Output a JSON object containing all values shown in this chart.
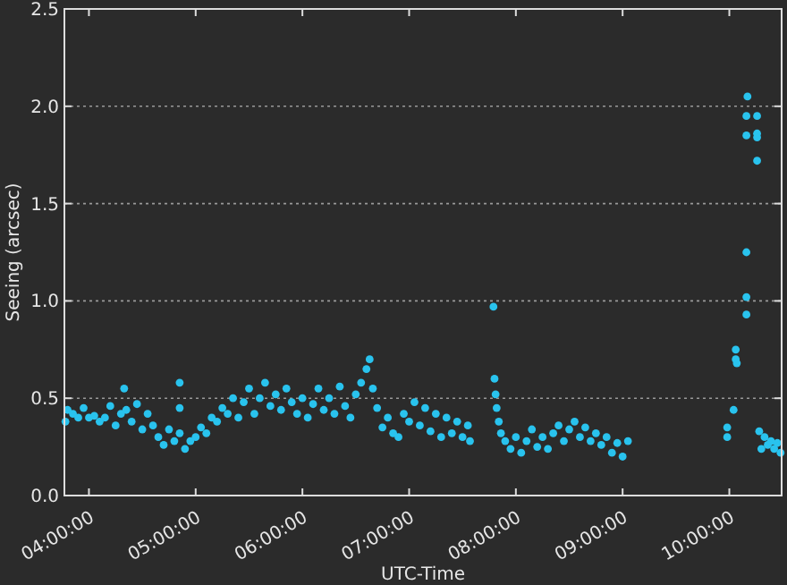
{
  "chart_data": {
    "type": "scatter",
    "xlabel": "UTC-Time",
    "ylabel": "Seeing (arcsec)",
    "marker": "circle",
    "grid": "y",
    "xlim": [
      3.77,
      10.49
    ],
    "ylim": [
      0,
      2.5
    ],
    "xticks": [
      {
        "value": 4,
        "label": "04:00:00"
      },
      {
        "value": 5,
        "label": "05:00:00"
      },
      {
        "value": 6,
        "label": "06:00:00"
      },
      {
        "value": 7,
        "label": "07:00:00"
      },
      {
        "value": 8,
        "label": "08:00:00"
      },
      {
        "value": 9,
        "label": "09:00:00"
      },
      {
        "value": 10,
        "label": "10:00:00"
      }
    ],
    "yticks": [
      {
        "value": 0,
        "label": "0.0"
      },
      {
        "value": 0.5,
        "label": "0.5"
      },
      {
        "value": 1,
        "label": "1.0"
      },
      {
        "value": 1.5,
        "label": "1.5"
      },
      {
        "value": 2,
        "label": "2.0"
      },
      {
        "value": 2.5,
        "label": "2.5"
      }
    ],
    "series": [
      {
        "color": "#29c3ee",
        "x": [
          3.78,
          3.8,
          3.85,
          3.9,
          3.95,
          4,
          4.05,
          4.1,
          4.15,
          4.2,
          4.25,
          4.3,
          4.33,
          4.35,
          4.4,
          4.45,
          4.5,
          4.55,
          4.6,
          4.65,
          4.7,
          4.75,
          4.8,
          4.85,
          4.85,
          4.85,
          4.9,
          4.95,
          5,
          5.05,
          5.1,
          5.15,
          5.2,
          5.25,
          5.3,
          5.35,
          5.4,
          5.45,
          5.5,
          5.55,
          5.6,
          5.65,
          5.7,
          5.75,
          5.8,
          5.85,
          5.9,
          5.95,
          6,
          6.05,
          6.1,
          6.15,
          6.2,
          6.25,
          6.3,
          6.35,
          6.4,
          6.45,
          6.5,
          6.55,
          6.6,
          6.63,
          6.66,
          6.7,
          6.75,
          6.8,
          6.85,
          6.9,
          6.95,
          7,
          7.05,
          7.1,
          7.15,
          7.2,
          7.25,
          7.3,
          7.35,
          7.4,
          7.45,
          7.5,
          7.55,
          7.57,
          7.79,
          7.8,
          7.81,
          7.82,
          7.84,
          7.86,
          7.9,
          7.95,
          8,
          8.05,
          8.1,
          8.15,
          8.2,
          8.25,
          8.3,
          8.35,
          8.4,
          8.45,
          8.5,
          8.55,
          8.6,
          8.65,
          8.7,
          8.75,
          8.8,
          8.85,
          8.9,
          8.95,
          9,
          9.05,
          9.98,
          9.98,
          10.04,
          10.06,
          10.06,
          10.07,
          10.16,
          10.16,
          10.16,
          10.16,
          10.16,
          10.17,
          10.26,
          10.26,
          10.26,
          10.26,
          10.28,
          10.3,
          10.33,
          10.36,
          10.39,
          10.42,
          10.45,
          10.48
        ],
        "values": [
          0.38,
          0.44,
          0.42,
          0.4,
          0.45,
          0.4,
          0.41,
          0.38,
          0.4,
          0.46,
          0.36,
          0.42,
          0.55,
          0.44,
          0.38,
          0.47,
          0.34,
          0.42,
          0.36,
          0.3,
          0.26,
          0.34,
          0.28,
          0.58,
          0.45,
          0.32,
          0.24,
          0.28,
          0.3,
          0.35,
          0.32,
          0.4,
          0.38,
          0.45,
          0.42,
          0.5,
          0.4,
          0.48,
          0.55,
          0.42,
          0.5,
          0.58,
          0.46,
          0.52,
          0.44,
          0.55,
          0.48,
          0.42,
          0.5,
          0.4,
          0.47,
          0.55,
          0.44,
          0.5,
          0.42,
          0.56,
          0.46,
          0.4,
          0.52,
          0.58,
          0.65,
          0.7,
          0.55,
          0.45,
          0.35,
          0.4,
          0.32,
          0.3,
          0.42,
          0.38,
          0.48,
          0.36,
          0.45,
          0.33,
          0.42,
          0.3,
          0.4,
          0.32,
          0.38,
          0.3,
          0.36,
          0.28,
          0.97,
          0.6,
          0.52,
          0.45,
          0.38,
          0.32,
          0.28,
          0.24,
          0.3,
          0.22,
          0.28,
          0.34,
          0.25,
          0.3,
          0.24,
          0.32,
          0.36,
          0.28,
          0.34,
          0.38,
          0.3,
          0.35,
          0.28,
          0.32,
          0.26,
          0.3,
          0.22,
          0.27,
          0.2,
          0.28,
          0.3,
          0.35,
          0.44,
          0.7,
          0.75,
          0.68,
          0.93,
          1.02,
          1.25,
          1.85,
          1.95,
          2.05,
          1.95,
          1.86,
          1.84,
          1.72,
          0.33,
          0.24,
          0.3,
          0.26,
          0.28,
          0.24,
          0.27,
          0.22
        ]
      }
    ]
  }
}
